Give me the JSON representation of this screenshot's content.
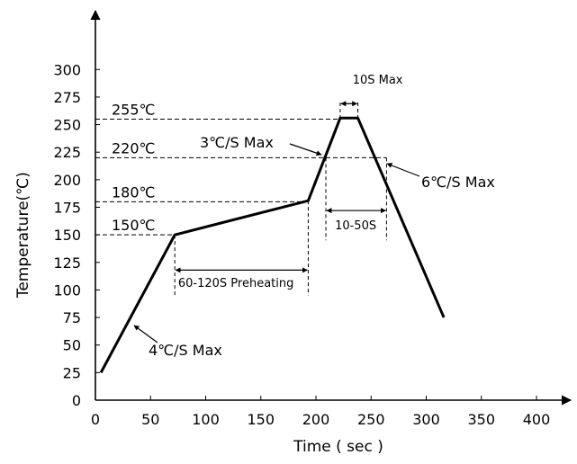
{
  "chart_data": {
    "type": "line",
    "xlabel": "Time ( sec )",
    "ylabel": "Temperature(℃)",
    "xlim": [
      0,
      420
    ],
    "ylim": [
      0,
      320
    ],
    "xticks": [
      0,
      50,
      100,
      150,
      200,
      250,
      300,
      350,
      400
    ],
    "yticks": [
      0,
      25,
      50,
      75,
      100,
      125,
      150,
      175,
      200,
      225,
      250,
      275,
      300
    ],
    "grid": false,
    "series": [
      {
        "x": [
          5,
          72,
          193,
          222,
          238,
          316
        ],
        "y": [
          25,
          150,
          181,
          256,
          256,
          75
        ]
      }
    ],
    "reference_lines": [
      {
        "label": "255℃",
        "y": 255,
        "x_end": 222
      },
      {
        "label": "220℃",
        "y": 220,
        "x_end": 264
      },
      {
        "label": "180℃",
        "y": 180,
        "x_end": 193
      },
      {
        "label": "150℃",
        "y": 150,
        "x_end": 72
      }
    ],
    "annotations": {
      "ramp_up": "4℃/S Max",
      "soak_ramp": "3℃/S Max",
      "ramp_down": "6℃/S Max",
      "preheat": "60-120S Preheating",
      "above_liquidus": "10-50S",
      "peak_time": "10S Max"
    }
  }
}
